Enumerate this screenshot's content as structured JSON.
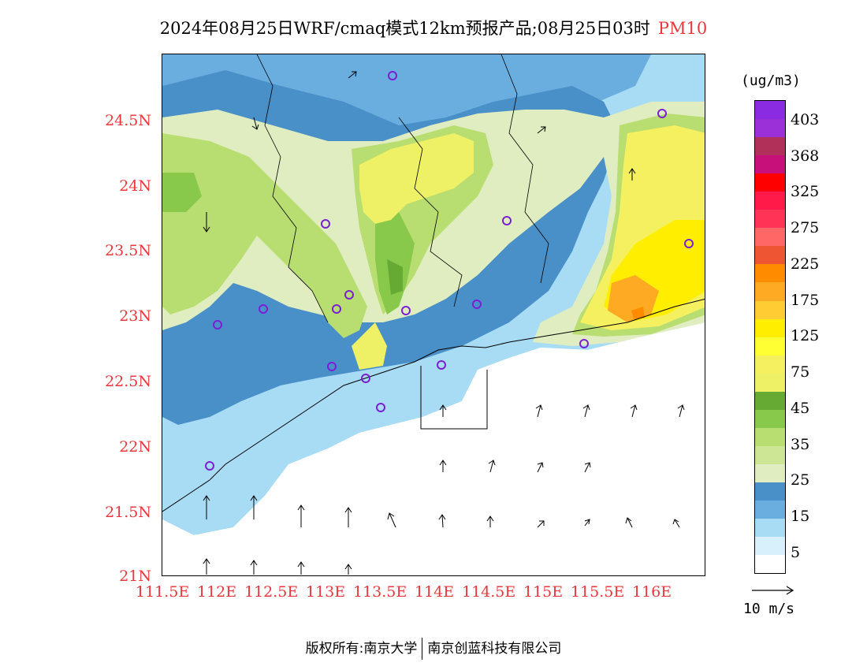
{
  "title": {
    "main": "2024年08月25日WRF/cmaq模式12km预报产品;08月25日03时",
    "pollutant": "PM10"
  },
  "axes": {
    "lat_labels": [
      "24.5N",
      "24N",
      "23.5N",
      "23N",
      "22.5N",
      "22N",
      "21.5N",
      "21N"
    ],
    "lon_labels": [
      "111.5E",
      "112E",
      "112.5E",
      "113E",
      "113.5E",
      "114E",
      "114.5E",
      "115E",
      "115.5E",
      "116E"
    ]
  },
  "colorbar": {
    "unit": "(ug/m3)",
    "labels": [
      "403",
      "368",
      "325",
      "275",
      "225",
      "175",
      "125",
      "75",
      "45",
      "35",
      "25",
      "15",
      "5"
    ],
    "colors": [
      "#8a2be2",
      "#9b30d9",
      "#b0305a",
      "#c8107a",
      "#ff0000",
      "#ff1a4a",
      "#ff3355",
      "#ff6666",
      "#ee5533",
      "#ff8c00",
      "#ffaa22",
      "#ffcc33",
      "#ffee00",
      "#ffff33",
      "#f5f060",
      "#eef066",
      "#66aa33",
      "#88c84a",
      "#b8dd70",
      "#cce695",
      "#e0edc0",
      "#4a90c8",
      "#6aaee0",
      "#a8dcf5",
      "#d8f0fb",
      "#ffffff"
    ]
  },
  "wind_reference": {
    "label": "10 m/s"
  },
  "footer": {
    "left": "版权所有:南京大学",
    "right": "南京创蓝科技有限公司"
  }
}
